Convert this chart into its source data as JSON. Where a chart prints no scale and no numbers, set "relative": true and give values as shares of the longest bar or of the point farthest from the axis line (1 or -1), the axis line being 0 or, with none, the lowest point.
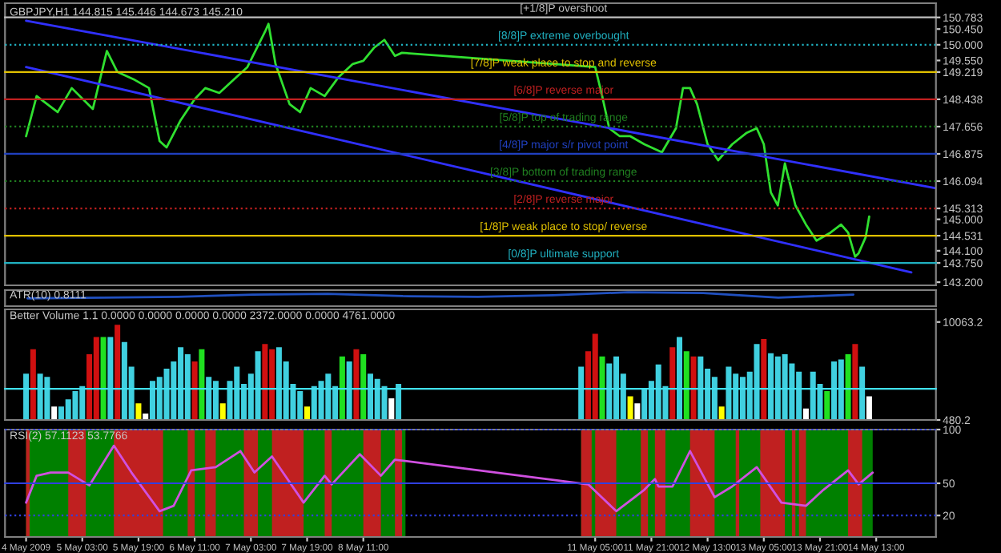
{
  "chart_data": [
    {
      "type": "line",
      "title": "GBPJPY,H1 144.815 145.446 144.673 145.210",
      "xlim": [
        "2009-05-04T05:00",
        "2009-05-15T06:00"
      ],
      "ylim": [
        143.11,
        151.19
      ],
      "tick_labels": "y",
      "grid": false,
      "yticks": [
        {
          "value": 150.783,
          "label": "150.783"
        },
        {
          "value": 150.45,
          "label": "150.450"
        },
        {
          "value": 150.0,
          "label": "150.000"
        },
        {
          "value": 149.55,
          "label": "149.550"
        },
        {
          "value": 149.219,
          "label": "149.219"
        },
        {
          "value": 148.438,
          "label": "148.438"
        },
        {
          "value": 147.656,
          "label": "147.656"
        },
        {
          "value": 146.875,
          "label": "146.875"
        },
        {
          "value": 146.094,
          "label": "146.094"
        },
        {
          "value": 145.313,
          "label": "145.313"
        },
        {
          "value": 145.0,
          "label": "145.000"
        },
        {
          "value": 144.531,
          "label": "144.531"
        },
        {
          "value": 144.1,
          "label": "144.100"
        },
        {
          "value": 143.75,
          "label": "143.750"
        },
        {
          "value": 143.2,
          "label": "143.200"
        }
      ],
      "ref_lines": [
        {
          "axis": "y",
          "value": 150.783,
          "label": "[+1/8]P overshoot",
          "color": "#c0c0c0",
          "line_style": "solid"
        },
        {
          "axis": "y",
          "value": 150.0,
          "label": "[8/8]P extreme overbought",
          "color": "#20b0c0",
          "line_style": "dotted"
        },
        {
          "axis": "y",
          "value": 149.219,
          "label": "[7/8]P weak place to stop and reverse",
          "color": "#e0c000",
          "line_style": "solid"
        },
        {
          "axis": "y",
          "value": 148.438,
          "label": "[6/8]P reverse major",
          "color": "#c02020",
          "line_style": "solid"
        },
        {
          "axis": "y",
          "value": 147.656,
          "label": "[5/8]P top of trading range",
          "color": "#208020",
          "line_style": "dotted"
        },
        {
          "axis": "y",
          "value": 146.875,
          "label": "[4/8]P major s/r pivot point",
          "color": "#2040c0",
          "line_style": "solid"
        },
        {
          "axis": "y",
          "value": 146.094,
          "label": "[3/8]P bottom of trading range",
          "color": "#208020",
          "line_style": "dotted"
        },
        {
          "axis": "y",
          "value": 145.313,
          "label": "[2/8]P reverse major",
          "color": "#c02020",
          "line_style": "dotted"
        },
        {
          "axis": "y",
          "value": 144.531,
          "label": "[1/8]P weak place to stop/ reverse",
          "color": "#e0c000",
          "line_style": "solid"
        },
        {
          "axis": "y",
          "value": 143.75,
          "label": "[0/8]P ultimate support",
          "color": "#20b0c0",
          "line_style": "solid"
        }
      ],
      "series": [
        {
          "color": "#30e030",
          "x": [
            "2009-05-04T11:00",
            "2009-05-04T14:00",
            "2009-05-04T20:00",
            "2009-05-05T00:00",
            "2009-05-05T06:00",
            "2009-05-05T10:00",
            "2009-05-05T13:00",
            "2009-05-05T18:00",
            "2009-05-05T22:00",
            "2009-05-06T01:00",
            "2009-05-06T03:00",
            "2009-05-06T07:00",
            "2009-05-06T11:00",
            "2009-05-06T14:00",
            "2009-05-06T18:00",
            "2009-05-06T22:00",
            "2009-05-07T02:00",
            "2009-05-07T07:00",
            "2009-05-07T08:00",
            "2009-05-07T10:00",
            "2009-05-07T14:00",
            "2009-05-07T17:00",
            "2009-05-07T20:00",
            "2009-05-08T00:00",
            "2009-05-08T04:00",
            "2009-05-08T08:00",
            "2009-05-08T11:00",
            "2009-05-08T14:00",
            "2009-05-08T17:00",
            "2009-05-08T20:00",
            "2009-05-08T22:00",
            "2009-05-11T05:00",
            "2009-05-11T07:00",
            "2009-05-11T09:00",
            "2009-05-11T12:00",
            "2009-05-11T15:00",
            "2009-05-11T19:00",
            "2009-05-12T00:00",
            "2009-05-12T04:00",
            "2009-05-12T06:00",
            "2009-05-12T08:00",
            "2009-05-12T10:00",
            "2009-05-12T13:00",
            "2009-05-12T16:00",
            "2009-05-12T20:00",
            "2009-05-13T00:00",
            "2009-05-13T03:00",
            "2009-05-13T05:00",
            "2009-05-13T07:00",
            "2009-05-13T09:00",
            "2009-05-13T11:00",
            "2009-05-13T14:00",
            "2009-05-13T17:00",
            "2009-05-13T20:00",
            "2009-05-14T00:00",
            "2009-05-14T03:00",
            "2009-05-14T05:00",
            "2009-05-14T07:00",
            "2009-05-14T08:00",
            "2009-05-14T10:00",
            "2009-05-14T11:00"
          ],
          "values": [
            147.38,
            148.53,
            148.07,
            148.76,
            148.16,
            149.82,
            149.22,
            148.99,
            148.76,
            147.24,
            147.06,
            147.84,
            148.44,
            148.76,
            148.62,
            148.99,
            149.36,
            150.37,
            150.6,
            149.45,
            148.3,
            148.07,
            148.76,
            148.53,
            149.08,
            149.45,
            149.54,
            149.91,
            150.14,
            149.68,
            149.77,
            149.36,
            148.53,
            147.61,
            147.38,
            147.38,
            147.15,
            146.92,
            147.61,
            148.76,
            148.76,
            148.3,
            147.15,
            146.69,
            147.15,
            147.47,
            147.61,
            147.15,
            145.77,
            145.4,
            146.6,
            145.4,
            144.85,
            144.39,
            144.62,
            144.85,
            144.62,
            143.93,
            144.03,
            144.49,
            145.08
          ]
        },
        {
          "color": "#3030ff",
          "x": [
            "2009-05-04T11:00",
            "2009-05-15T06:00"
          ],
          "values": [
            150.69,
            145.89
          ]
        },
        {
          "color": "#3030ff",
          "x": [
            "2009-05-04T11:00",
            "2009-05-14T23:00"
          ],
          "values": [
            149.36,
            143.48
          ]
        }
      ]
    },
    {
      "type": "line",
      "title": "ATR(10) 0.8111",
      "relative": true,
      "tick_labels": false,
      "grid": false,
      "categories": [
        null,
        null,
        null,
        null,
        null,
        null,
        null,
        null,
        null,
        null,
        null,
        null
      ],
      "series": [
        {
          "color": "#2050c0",
          "values": [
            0.56,
            0.61,
            0.67,
            0.83,
            0.89,
            0.72,
            0.67,
            0.78,
            1,
            0.94,
            0.61,
            0.83
          ]
        }
      ]
    },
    {
      "type": "bar",
      "title": "Better Volume 1.1 0.0000 0.0000 0.0000 0.0000 2372.0000 0.0000 4761.0000",
      "xlim": [
        "2009-05-04T05:00",
        "2009-05-15T06:00"
      ],
      "ylim": [
        480.2,
        11300
      ],
      "tick_labels": "y",
      "grid": false,
      "yticks": [
        {
          "value": 10063.2,
          "label": "10063.2"
        },
        {
          "value": 480.2,
          "label": "480.2"
        }
      ],
      "ref_lines": [
        {
          "axis": "y",
          "value": 3530,
          "color": "#40e0f0",
          "line_style": "solid"
        }
      ],
      "x": [
        "2009-05-04T11:00",
        "2009-05-04T13:00",
        "2009-05-04T15:00",
        "2009-05-04T17:00",
        "2009-05-04T19:00",
        "2009-05-04T21:00",
        "2009-05-04T23:00",
        "2009-05-05T01:00",
        "2009-05-05T03:00",
        "2009-05-05T05:00",
        "2009-05-05T07:00",
        "2009-05-05T09:00",
        "2009-05-05T11:00",
        "2009-05-05T13:00",
        "2009-05-05T15:00",
        "2009-05-05T17:00",
        "2009-05-05T19:00",
        "2009-05-05T21:00",
        "2009-05-05T23:00",
        "2009-05-06T01:00",
        "2009-05-06T03:00",
        "2009-05-06T05:00",
        "2009-05-06T07:00",
        "2009-05-06T09:00",
        "2009-05-06T11:00",
        "2009-05-06T13:00",
        "2009-05-06T15:00",
        "2009-05-06T17:00",
        "2009-05-06T19:00",
        "2009-05-06T21:00",
        "2009-05-06T23:00",
        "2009-05-07T01:00",
        "2009-05-07T03:00",
        "2009-05-07T05:00",
        "2009-05-07T07:00",
        "2009-05-07T09:00",
        "2009-05-07T11:00",
        "2009-05-07T13:00",
        "2009-05-07T15:00",
        "2009-05-07T17:00",
        "2009-05-07T19:00",
        "2009-05-07T21:00",
        "2009-05-07T23:00",
        "2009-05-08T01:00",
        "2009-05-08T03:00",
        "2009-05-08T05:00",
        "2009-05-08T07:00",
        "2009-05-08T09:00",
        "2009-05-08T11:00",
        "2009-05-08T13:00",
        "2009-05-08T15:00",
        "2009-05-08T17:00",
        "2009-05-08T19:00",
        "2009-05-08T21:00",
        "2009-05-11T01:00",
        "2009-05-11T03:00",
        "2009-05-11T05:00",
        "2009-05-11T07:00",
        "2009-05-11T09:00",
        "2009-05-11T11:00",
        "2009-05-11T13:00",
        "2009-05-11T15:00",
        "2009-05-11T17:00",
        "2009-05-11T19:00",
        "2009-05-11T21:00",
        "2009-05-11T23:00",
        "2009-05-12T01:00",
        "2009-05-12T03:00",
        "2009-05-12T05:00",
        "2009-05-12T07:00",
        "2009-05-12T09:00",
        "2009-05-12T11:00",
        "2009-05-12T13:00",
        "2009-05-12T15:00",
        "2009-05-12T17:00",
        "2009-05-12T19:00",
        "2009-05-12T21:00",
        "2009-05-12T23:00",
        "2009-05-13T01:00",
        "2009-05-13T03:00",
        "2009-05-13T05:00",
        "2009-05-13T07:00",
        "2009-05-13T09:00",
        "2009-05-13T11:00",
        "2009-05-13T13:00",
        "2009-05-13T15:00",
        "2009-05-13T17:00",
        "2009-05-13T19:00",
        "2009-05-13T21:00",
        "2009-05-13T23:00",
        "2009-05-14T01:00",
        "2009-05-14T03:00",
        "2009-05-14T05:00",
        "2009-05-14T07:00",
        "2009-05-14T09:00",
        "2009-05-14T11:00"
      ],
      "values": [
        5000,
        7400,
        5000,
        4700,
        1800,
        1800,
        2500,
        3300,
        3800,
        6900,
        8600,
        8600,
        8600,
        9800,
        8100,
        5700,
        2100,
        1100,
        4300,
        4700,
        5500,
        6200,
        7600,
        6900,
        6200,
        7400,
        4700,
        4300,
        2100,
        4300,
        5700,
        4000,
        5000,
        7200,
        7900,
        7400,
        7600,
        6200,
        4000,
        3300,
        1800,
        3800,
        4300,
        5000,
        3800,
        6700,
        6200,
        7400,
        6900,
        5000,
        4500,
        3800,
        2600,
        4000,
        5700,
        7200,
        8900,
        6700,
        6000,
        6700,
        5000,
        2800,
        2100,
        3500,
        4300,
        5900,
        3800,
        7600,
        8600,
        7200,
        6700,
        6700,
        5500,
        4700,
        1800,
        5700,
        5000,
        4700,
        5200,
        7900,
        8400,
        7000,
        6700,
        6900,
        6000,
        5200,
        1600,
        5200,
        4000,
        3300,
        6200,
        6400,
        6900,
        7900,
        5700,
        2800
      ],
      "colors": [
        "#40d0e0",
        "#d01010",
        "#40d0e0",
        "#40d0e0",
        "#ffffff",
        "#40d0e0",
        "#40d0e0",
        "#40d0e0",
        "#40d0e0",
        "#d01010",
        "#d01010",
        "#20e020",
        "#40d0e0",
        "#d01010",
        "#40d0e0",
        "#40d0e0",
        "#ffff00",
        "#ffffff",
        "#40d0e0",
        "#40d0e0",
        "#40d0e0",
        "#40d0e0",
        "#40d0e0",
        "#40d0e0",
        "#d01010",
        "#20e020",
        "#40d0e0",
        "#40d0e0",
        "#ffff00",
        "#40d0e0",
        "#40d0e0",
        "#40d0e0",
        "#40d0e0",
        "#40d0e0",
        "#d01010",
        "#d01010",
        "#40d0e0",
        "#40d0e0",
        "#40d0e0",
        "#40d0e0",
        "#ffff00",
        "#40d0e0",
        "#40d0e0",
        "#40d0e0",
        "#40d0e0",
        "#20e020",
        "#40d0e0",
        "#d01010",
        "#20e020",
        "#40d0e0",
        "#40d0e0",
        "#40d0e0",
        "#ffffff",
        "#40d0e0",
        "#40d0e0",
        "#d01010",
        "#d01010",
        "#20e020",
        "#40d0e0",
        "#40d0e0",
        "#40d0e0",
        "#ffff00",
        "#ffffff",
        "#40d0e0",
        "#40d0e0",
        "#40d0e0",
        "#40d0e0",
        "#d01010",
        "#40d0e0",
        "#20e020",
        "#d01010",
        "#40d0e0",
        "#40d0e0",
        "#40d0e0",
        "#ffff00",
        "#40d0e0",
        "#40d0e0",
        "#40d0e0",
        "#40d0e0",
        "#40d0e0",
        "#d01010",
        "#40d0e0",
        "#40d0e0",
        "#40d0e0",
        "#40d0e0",
        "#40d0e0",
        "#ffffff",
        "#40d0e0",
        "#40d0e0",
        "#20e020",
        "#40d0e0",
        "#40d0e0",
        "#20e020",
        "#d01010",
        "#40d0e0",
        "#ffffff"
      ]
    },
    {
      "type": "line",
      "title": "RSI(2) 57.1123 53.7766",
      "xlim": [
        "2009-05-04T05:00",
        "2009-05-15T06:00"
      ],
      "ylim": [
        0,
        100
      ],
      "yticks": [
        20,
        50,
        100
      ],
      "grid": false,
      "xticks": [
        {
          "value": "2009-05-04T11:00",
          "label": "4 May 2009"
        },
        {
          "value": "2009-05-05T03:00",
          "label": "5 May 03:00"
        },
        {
          "value": "2009-05-05T19:00",
          "label": "5 May 19:00"
        },
        {
          "value": "2009-05-06T11:00",
          "label": "6 May 11:00"
        },
        {
          "value": "2009-05-07T03:00",
          "label": "7 May 03:00"
        },
        {
          "value": "2009-05-07T19:00",
          "label": "7 May 19:00"
        },
        {
          "value": "2009-05-08T11:00",
          "label": "8 May 11:00"
        },
        {
          "value": "2009-05-11T05:00",
          "label": "11 May 05:00"
        },
        {
          "value": "2009-05-11T21:00",
          "label": "11 May 21:00"
        },
        {
          "value": "2009-05-12T13:00",
          "label": "12 May 13:00"
        },
        {
          "value": "2009-05-13T05:00",
          "label": "13 May 05:00"
        },
        {
          "value": "2009-05-13T21:00",
          "label": "13 May 21:00"
        },
        {
          "value": "2009-05-14T13:00",
          "label": "14 May 13:00"
        }
      ],
      "ref_lines": [
        {
          "axis": "y",
          "value": 100,
          "color": "#3040e0",
          "line_style": "dotted"
        },
        {
          "axis": "y",
          "value": 50,
          "color": "#3040e0",
          "line_style": "solid"
        },
        {
          "axis": "y",
          "value": 20,
          "color": "#3040e0",
          "line_style": "dotted"
        }
      ],
      "bands": [
        {
          "axis": "x",
          "from": "2009-05-04T11:00",
          "to": "2009-05-08T23:00",
          "color": "#008000"
        },
        {
          "axis": "x",
          "from": "2009-05-11T01:00",
          "to": "2009-05-14T12:00",
          "color": "#008000"
        },
        {
          "axis": "x",
          "from": "2009-05-04T11:00",
          "to": "2009-05-04T12:00",
          "color": "#c02020"
        },
        {
          "axis": "x",
          "from": "2009-05-04T23:00",
          "to": "2009-05-05T04:00",
          "color": "#c02020"
        },
        {
          "axis": "x",
          "from": "2009-05-05T12:00",
          "to": "2009-05-06T02:00",
          "color": "#c02020"
        },
        {
          "axis": "x",
          "from": "2009-05-06T09:00",
          "to": "2009-05-06T11:00",
          "color": "#c02020"
        },
        {
          "axis": "x",
          "from": "2009-05-06T14:00",
          "to": "2009-05-06T17:00",
          "color": "#c02020"
        },
        {
          "axis": "x",
          "from": "2009-05-07T01:00",
          "to": "2009-05-07T05:00",
          "color": "#c02020"
        },
        {
          "axis": "x",
          "from": "2009-05-07T09:00",
          "to": "2009-05-07T18:00",
          "color": "#c02020"
        },
        {
          "axis": "x",
          "from": "2009-05-08T00:00",
          "to": "2009-05-08T02:00",
          "color": "#c02020"
        },
        {
          "axis": "x",
          "from": "2009-05-08T11:00",
          "to": "2009-05-08T16:00",
          "color": "#c02020"
        },
        {
          "axis": "x",
          "from": "2009-05-08T20:00",
          "to": "2009-05-08T22:00",
          "color": "#c02020"
        },
        {
          "axis": "x",
          "from": "2009-05-11T01:00",
          "to": "2009-05-11T04:00",
          "color": "#c02020"
        },
        {
          "axis": "x",
          "from": "2009-05-11T05:00",
          "to": "2009-05-11T11:00",
          "color": "#c02020"
        },
        {
          "axis": "x",
          "from": "2009-05-11T18:00",
          "to": "2009-05-11T20:00",
          "color": "#c02020"
        },
        {
          "axis": "x",
          "from": "2009-05-11T22:00",
          "to": "2009-05-12T01:00",
          "color": "#c02020"
        },
        {
          "axis": "x",
          "from": "2009-05-12T08:00",
          "to": "2009-05-12T15:00",
          "color": "#c02020"
        },
        {
          "axis": "x",
          "from": "2009-05-12T21:00",
          "to": "2009-05-12T22:00",
          "color": "#c02020"
        },
        {
          "axis": "x",
          "from": "2009-05-13T04:00",
          "to": "2009-05-13T11:00",
          "color": "#c02020"
        },
        {
          "axis": "x",
          "from": "2009-05-13T13:00",
          "to": "2009-05-13T14:00",
          "color": "#c02020"
        },
        {
          "axis": "x",
          "from": "2009-05-13T15:00",
          "to": "2009-05-13T17:00",
          "color": "#c02020"
        },
        {
          "axis": "x",
          "from": "2009-05-14T05:00",
          "to": "2009-05-14T09:00",
          "color": "#c02020"
        }
      ],
      "series": [
        {
          "color": "#d050e0",
          "x": [
            "2009-05-04T11:00",
            "2009-05-04T14:00",
            "2009-05-04T18:00",
            "2009-05-04T23:00",
            "2009-05-05T05:00",
            "2009-05-05T12:00",
            "2009-05-05T17:00",
            "2009-05-06T01:00",
            "2009-05-06T05:00",
            "2009-05-06T10:00",
            "2009-05-06T17:00",
            "2009-05-07T00:00",
            "2009-05-07T04:00",
            "2009-05-07T09:00",
            "2009-05-07T18:00",
            "2009-05-08T00:00",
            "2009-05-08T02:00",
            "2009-05-08T10:00",
            "2009-05-08T16:00",
            "2009-05-08T20:00",
            "2009-05-11T03:00",
            "2009-05-11T11:00",
            "2009-05-11T19:00",
            "2009-05-11T22:00",
            "2009-05-11T23:00",
            "2009-05-12T03:00",
            "2009-05-12T08:00",
            "2009-05-12T15:00",
            "2009-05-12T20:00",
            "2009-05-13T03:00",
            "2009-05-13T10:00",
            "2009-05-13T17:00",
            "2009-05-13T22:00",
            "2009-05-14T05:00",
            "2009-05-14T08:00",
            "2009-05-14T12:00"
          ],
          "values": [
            32,
            57,
            60,
            60,
            48,
            85,
            60,
            24,
            29,
            62,
            65,
            80,
            60,
            75,
            32,
            57,
            49,
            77,
            57,
            72,
            49,
            24,
            44,
            54,
            47,
            47,
            80,
            37,
            47,
            65,
            32,
            29,
            44,
            62,
            49,
            60
          ]
        }
      ]
    }
  ]
}
